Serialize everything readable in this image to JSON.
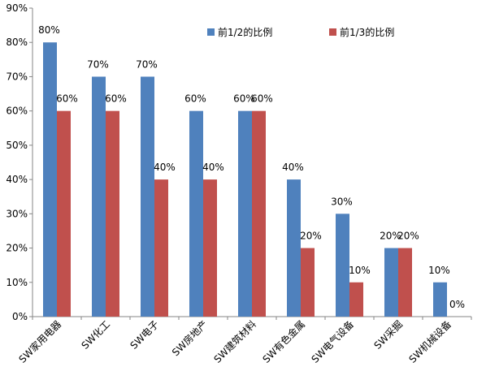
{
  "chart_data": {
    "type": "bar",
    "categories": [
      "SW家用电器",
      "SW化工",
      "SW电子",
      "SW房地产",
      "SW建筑材料",
      "SW有色金属",
      "SW电气设备",
      "SW采掘",
      "SW机械设备"
    ],
    "series": [
      {
        "name": "前1/2的比例",
        "values": [
          80,
          70,
          70,
          60,
          60,
          40,
          30,
          20,
          10
        ],
        "color": "#4F81BD"
      },
      {
        "name": "前1/3的比例",
        "values": [
          60,
          60,
          40,
          40,
          60,
          20,
          10,
          20,
          0
        ],
        "color": "#C0504D"
      }
    ],
    "data_labels": [
      [
        "80%",
        "70%",
        "70%",
        "60%",
        "60%",
        "40%",
        "30%",
        "20%",
        "10%"
      ],
      [
        "60%",
        "60%",
        "40%",
        "40%",
        "60%",
        "20%",
        "10%",
        "20%",
        "0%"
      ]
    ],
    "yticks": [
      "0%",
      "10%",
      "20%",
      "30%",
      "40%",
      "50%",
      "60%",
      "70%",
      "80%",
      "90%"
    ],
    "ylim": [
      0,
      90
    ],
    "grid": false,
    "legend_position": "top-right",
    "title": "",
    "xlabel": "",
    "ylabel": ""
  }
}
